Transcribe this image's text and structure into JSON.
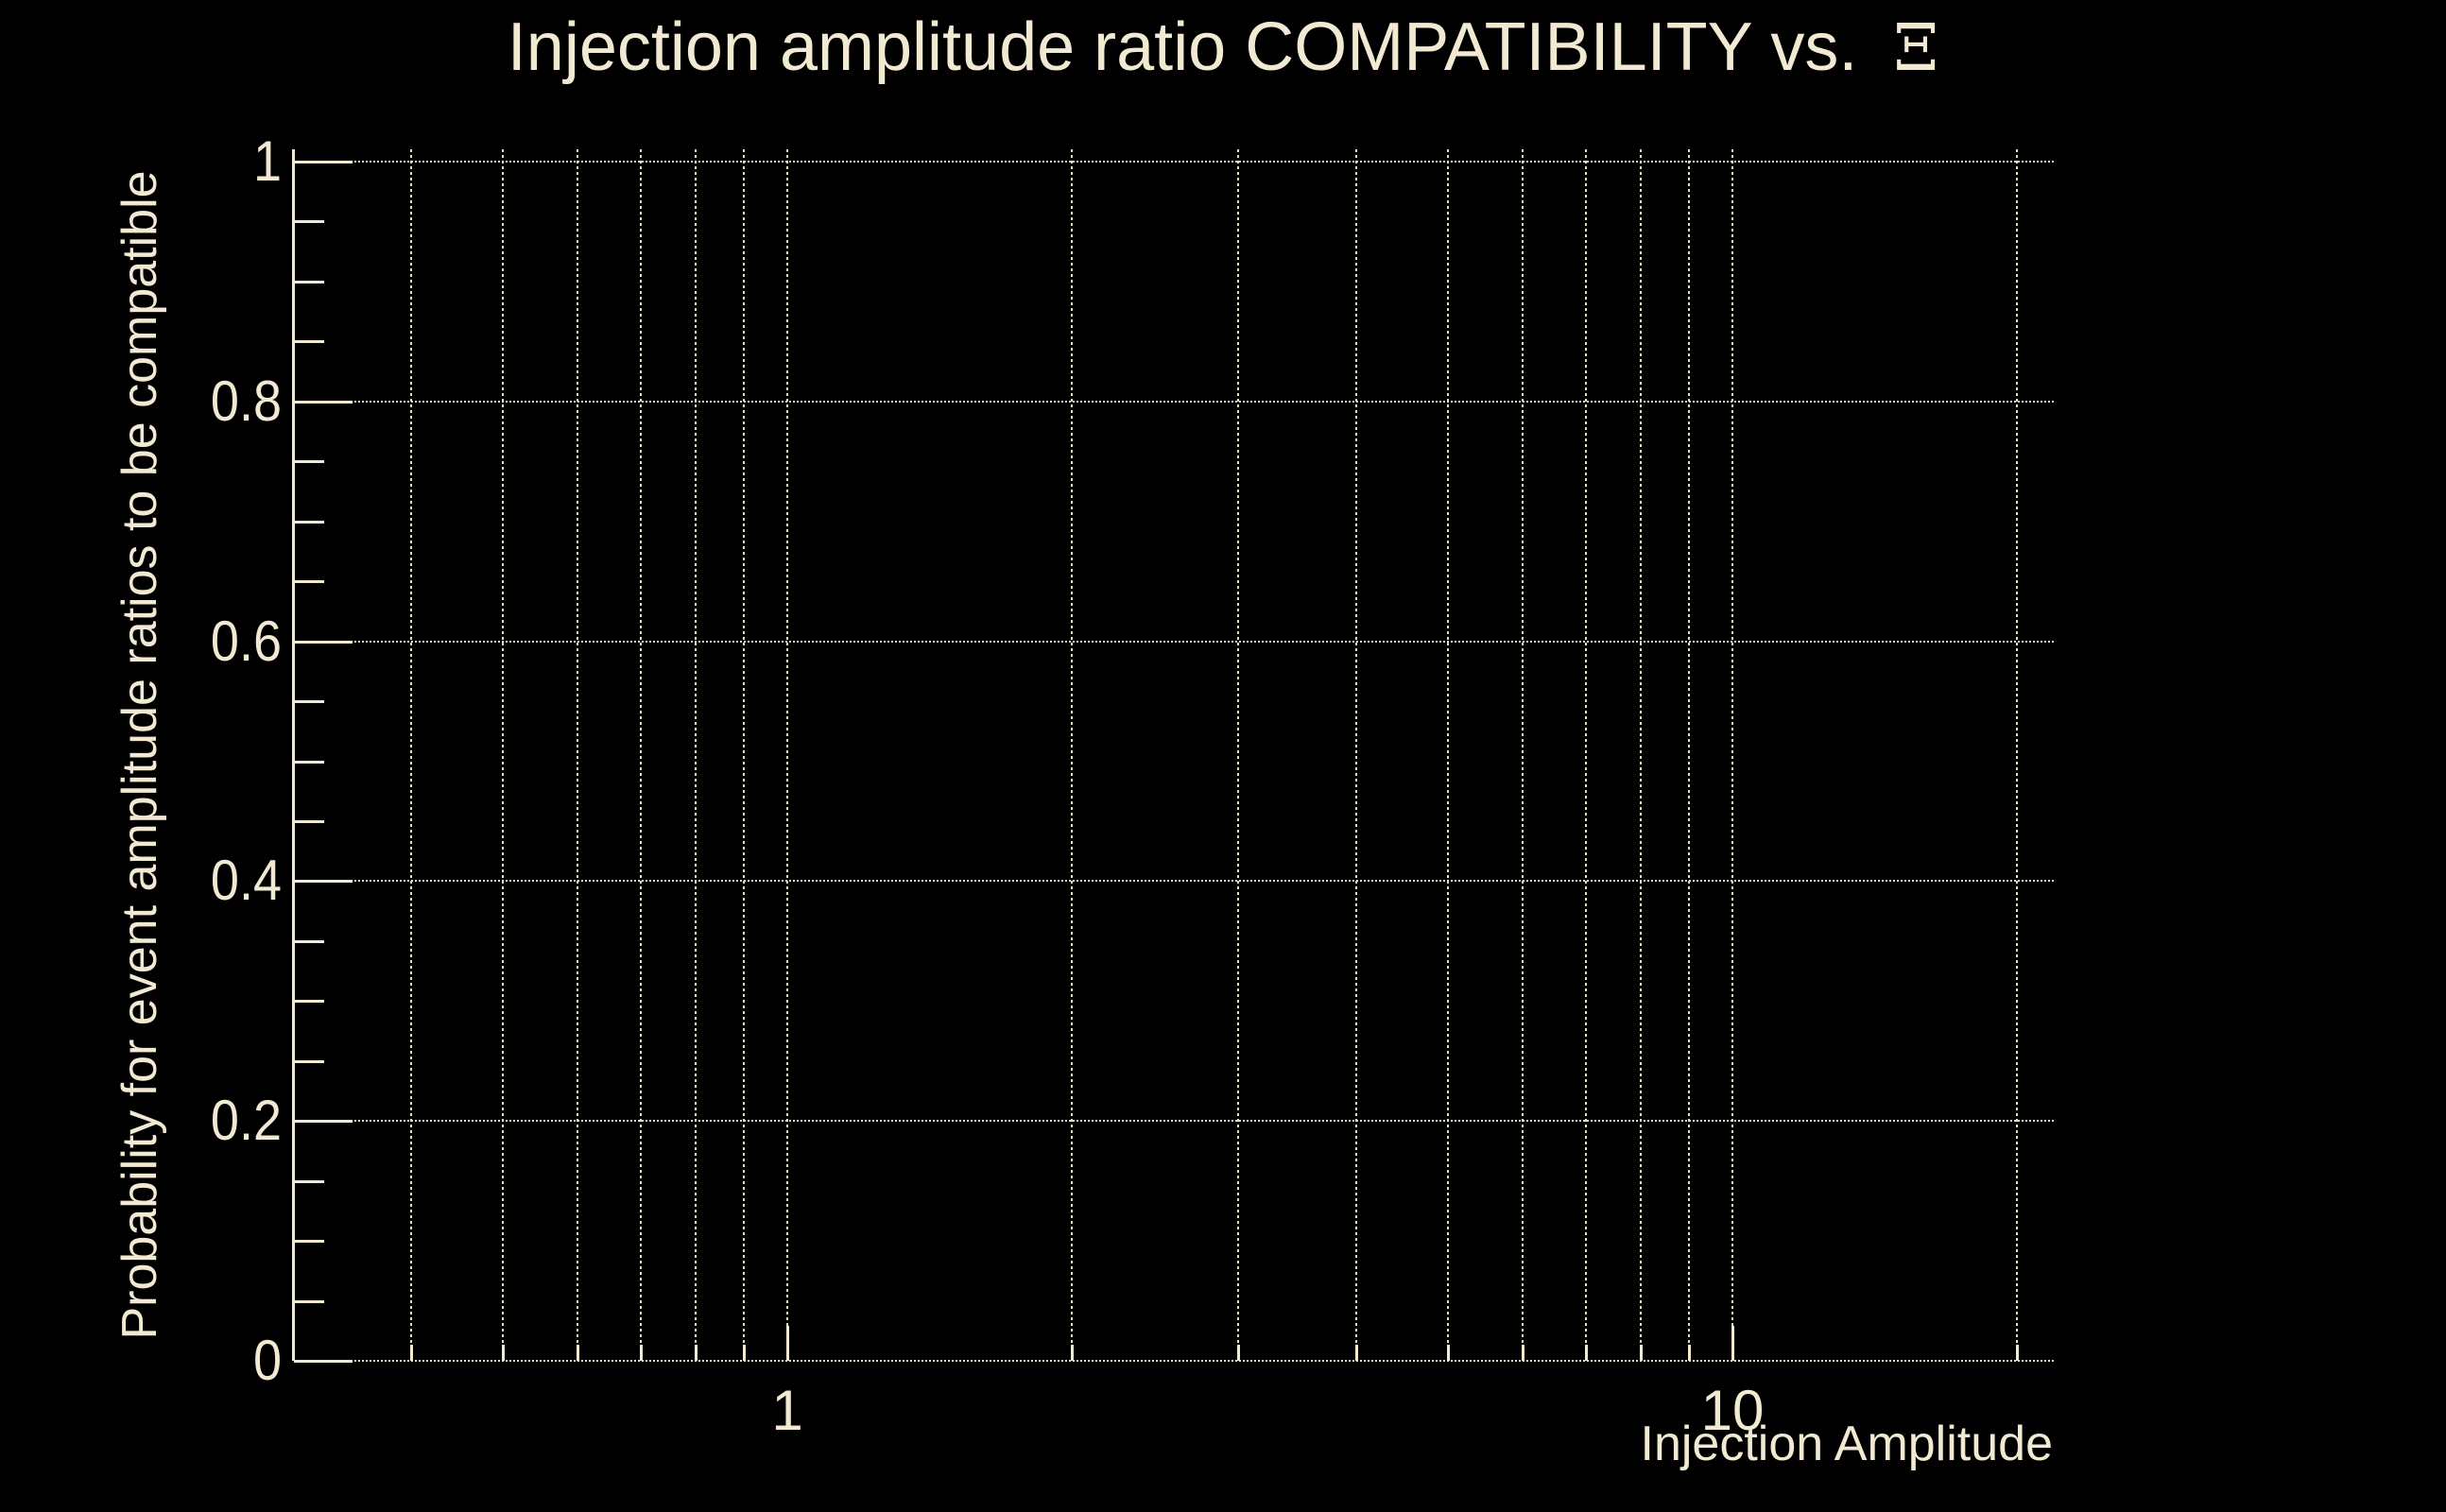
{
  "colors": {
    "background": "#000000",
    "foreground": "#f2e9d2",
    "grid": "#e6ddc6"
  },
  "chart_data": {
    "type": "line",
    "title": "Injection amplitude ratio COMPATIBILITY vs.  Ξ",
    "title_parts": {
      "main": "Injection amplitude ratio COMPATIBILITY vs.",
      "symbol": "Ξ"
    },
    "xlabel": "Injection Amplitude",
    "ylabel": "Probability for event amplitude ratios to be compatible",
    "x_axis": {
      "scale": "log",
      "range": [
        0.3,
        22
      ],
      "major_ticks": [
        1,
        10
      ],
      "major_tick_labels": [
        "1",
        "10"
      ],
      "minor_ticks": [
        0.4,
        0.5,
        0.6,
        0.7,
        0.8,
        0.9,
        2,
        3,
        4,
        5,
        6,
        7,
        8,
        9,
        20
      ]
    },
    "y_axis": {
      "scale": "linear",
      "range": [
        0,
        1
      ],
      "major_ticks": [
        0,
        0.2,
        0.4,
        0.6,
        0.8,
        1
      ],
      "major_tick_labels": [
        "0",
        "0.2",
        "0.4",
        "0.6",
        "0.8",
        "1"
      ],
      "minor_ticks": [
        0.05,
        0.1,
        0.15,
        0.25,
        0.3,
        0.35,
        0.45,
        0.5,
        0.55,
        0.65,
        0.7,
        0.75,
        0.85,
        0.9,
        0.95
      ]
    },
    "grid": {
      "style": "dotted",
      "x_gridlines": "all x ticks, full height",
      "y_gridlines": "major y ticks only, full width"
    },
    "legend": null,
    "series": []
  }
}
